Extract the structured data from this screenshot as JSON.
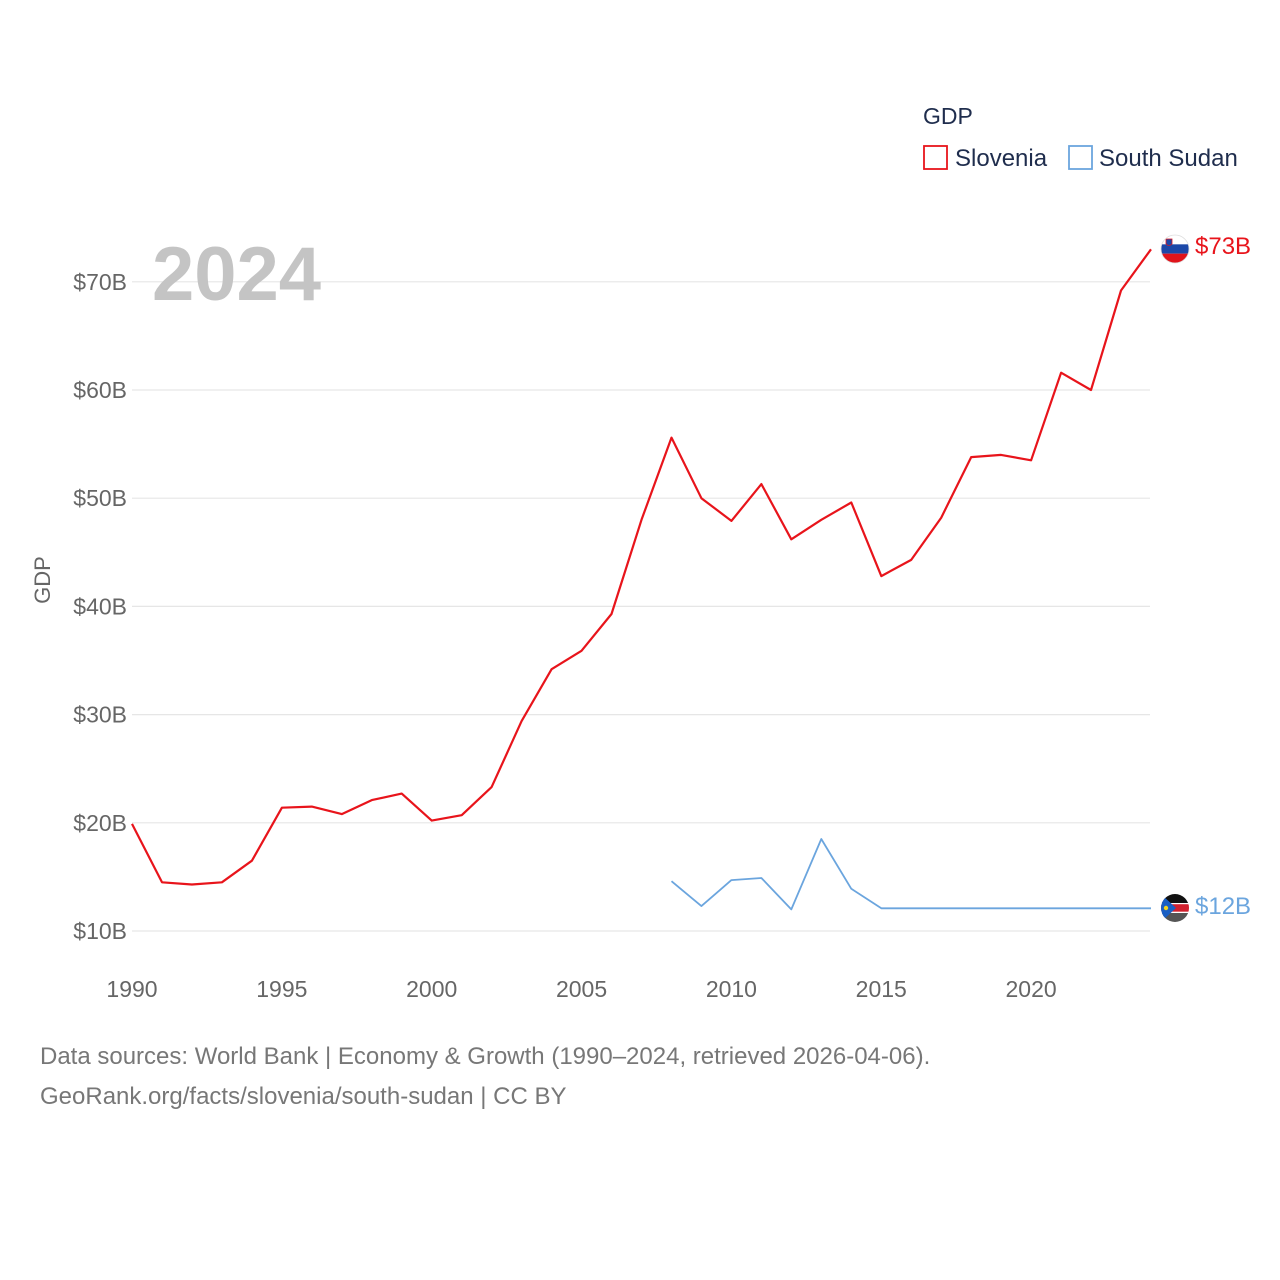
{
  "chart_data": {
    "type": "line",
    "legend_title": "GDP",
    "legend_position": "top-right",
    "year_label": "2024",
    "ylabel": "GDP",
    "xlabel": "",
    "xlim": [
      1990,
      2024
    ],
    "ylim": [
      10,
      75
    ],
    "x_ticks": [
      1990,
      1995,
      2000,
      2005,
      2010,
      2015,
      2020
    ],
    "y_ticks": [
      10,
      20,
      30,
      40,
      50,
      60,
      70
    ],
    "y_tick_labels": [
      "$10B",
      "$20B",
      "$30B",
      "$40B",
      "$50B",
      "$60B",
      "$70B"
    ],
    "grid": true,
    "series": [
      {
        "name": "Slovenia",
        "color": "#e8141b",
        "end_label": "$73B",
        "flag_icon": "slovenia-flag-icon",
        "x": [
          1990,
          1991,
          1992,
          1993,
          1994,
          1995,
          1996,
          1997,
          1998,
          1999,
          2000,
          2001,
          2002,
          2003,
          2004,
          2005,
          2006,
          2007,
          2008,
          2009,
          2010,
          2011,
          2012,
          2013,
          2014,
          2015,
          2016,
          2017,
          2018,
          2019,
          2020,
          2021,
          2022,
          2023,
          2024
        ],
        "values": [
          19.9,
          14.5,
          14.3,
          14.5,
          16.5,
          21.4,
          21.5,
          20.8,
          22.1,
          22.7,
          20.2,
          20.7,
          23.3,
          29.4,
          34.2,
          35.9,
          39.3,
          48,
          55.6,
          50,
          47.9,
          51.3,
          46.2,
          48,
          49.6,
          42.8,
          44.3,
          48.2,
          53.8,
          54,
          53.5,
          61.6,
          60,
          69.2,
          73
        ]
      },
      {
        "name": "South Sudan",
        "color": "#6ba5de",
        "end_label": "$12B",
        "flag_icon": "south-sudan-flag-icon",
        "x": [
          2008,
          2009,
          2010,
          2011,
          2012,
          2013,
          2014,
          2015,
          2016,
          2017,
          2018,
          2019,
          2020,
          2021,
          2022,
          2023,
          2024
        ],
        "values": [
          14.6,
          12.3,
          14.7,
          14.9,
          12,
          18.5,
          13.9,
          12.1,
          12.1,
          12.1,
          12.1,
          12.1,
          12.1,
          12.1,
          12.1,
          12.1,
          12.1
        ]
      }
    ]
  },
  "footer": {
    "source_line_1": "Data sources: World Bank | Economy & Growth (1990–2024, retrieved 2026-04-06).",
    "source_line_2": "GeoRank.org/facts/slovenia/south-sudan | CC BY"
  }
}
